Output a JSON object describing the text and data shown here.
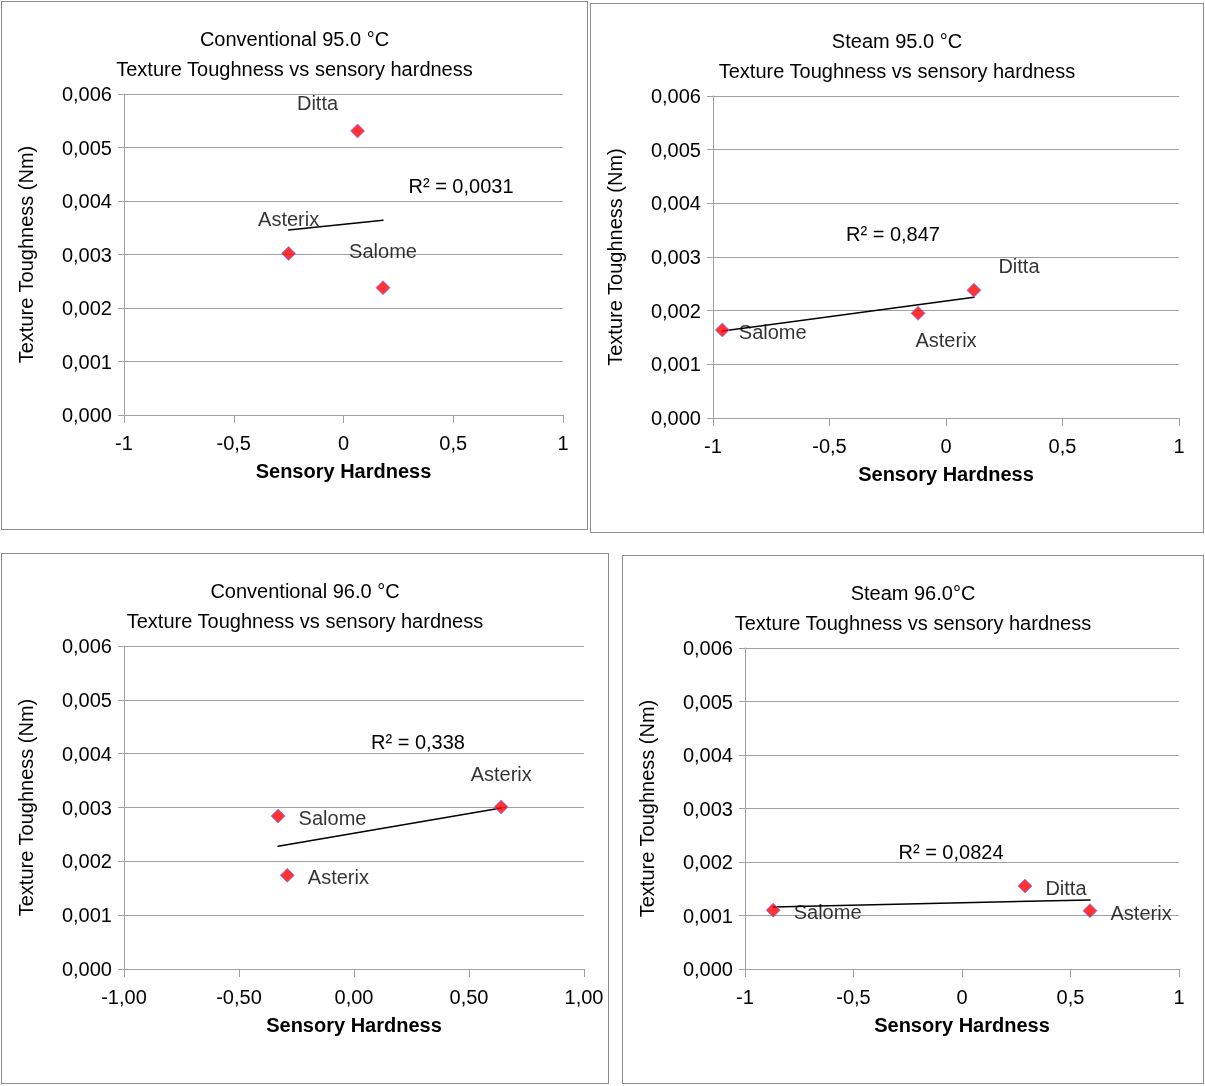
{
  "chart_data": [
    {
      "type": "scatter",
      "title": "Conventional 95.0 °C",
      "subtitle": "Texture Toughness vs sensory hardness",
      "xlabel": "Sensory Hardness",
      "ylabel": "Texture Toughness (Nm)",
      "marker": "diamond",
      "grid": "y",
      "xlim": [
        -1,
        1
      ],
      "xticks": [
        {
          "value": -1,
          "label": "-1"
        },
        {
          "value": -0.5,
          "label": "-0,5"
        },
        {
          "value": 0,
          "label": "0"
        },
        {
          "value": 0.5,
          "label": "0,5"
        },
        {
          "value": 1,
          "label": "1"
        }
      ],
      "ylim": [
        0,
        0.006
      ],
      "yticks": [
        {
          "value": 0,
          "label": "0,000"
        },
        {
          "value": 0.001,
          "label": "0,001"
        },
        {
          "value": 0.002,
          "label": "0,002"
        },
        {
          "value": 0.003,
          "label": "0,003"
        },
        {
          "value": 0.004,
          "label": "0,004"
        },
        {
          "value": 0.005,
          "label": "0,005"
        },
        {
          "value": 0.006,
          "label": "0,006"
        }
      ],
      "annotations": [
        "R² = 0,0031"
      ],
      "series": [
        {
          "color": "#ff0000",
          "x": [
            0.064,
            -0.25,
            0.18
          ],
          "values": [
            0.00531,
            0.00302,
            0.00238
          ],
          "value_labels": [
            "Ditta",
            "Asterix",
            "Salome"
          ]
        },
        {
          "type": "line",
          "color": "#000000",
          "marker": "none",
          "x": [
            -0.25,
            0.18
          ],
          "values": [
            0.00346,
            0.00364
          ]
        }
      ]
    },
    {
      "type": "scatter",
      "title": "Steam 95.0 °C",
      "subtitle": "Texture Toughness vs sensory hardness",
      "xlabel": "Sensory Hardness",
      "ylabel": "Texture Toughness (Nm)",
      "marker": "diamond",
      "grid": "y",
      "xlim": [
        -1,
        1
      ],
      "xticks": [
        {
          "value": -1,
          "label": "-1"
        },
        {
          "value": -0.5,
          "label": "-0,5"
        },
        {
          "value": 0,
          "label": "0"
        },
        {
          "value": 0.5,
          "label": "0,5"
        },
        {
          "value": 1,
          "label": "1"
        }
      ],
      "ylim": [
        0,
        0.006
      ],
      "yticks": [
        {
          "value": 0,
          "label": "0,000"
        },
        {
          "value": 0.001,
          "label": "0,001"
        },
        {
          "value": 0.002,
          "label": "0,002"
        },
        {
          "value": 0.003,
          "label": "0,003"
        },
        {
          "value": 0.004,
          "label": "0,004"
        },
        {
          "value": 0.005,
          "label": "0,005"
        },
        {
          "value": 0.006,
          "label": "0,006"
        }
      ],
      "annotations": [
        "R² = 0,847"
      ],
      "series": [
        {
          "color": "#ff0000",
          "x": [
            -0.96,
            -0.12,
            0.12
          ],
          "values": [
            0.00164,
            0.00195,
            0.00238
          ],
          "value_labels": [
            "Salome",
            "Asterix",
            "Ditta"
          ]
        },
        {
          "type": "line",
          "color": "#000000",
          "marker": "none",
          "x": [
            -0.96,
            0.12
          ],
          "values": [
            0.00162,
            0.00225
          ]
        }
      ]
    },
    {
      "type": "scatter",
      "title": "Conventional 96.0 °C",
      "subtitle": "Texture Toughness vs sensory hardness",
      "xlabel": "Sensory Hardness",
      "ylabel": "Texture Toughness (Nm)",
      "marker": "diamond",
      "grid": "y",
      "xlim": [
        -1,
        1
      ],
      "xticks": [
        {
          "value": -1,
          "label": "-1,00"
        },
        {
          "value": -0.5,
          "label": "-0,50"
        },
        {
          "value": 0,
          "label": "0,00"
        },
        {
          "value": 0.5,
          "label": "0,50"
        },
        {
          "value": 1,
          "label": "1,00"
        }
      ],
      "ylim": [
        0,
        0.006
      ],
      "yticks": [
        {
          "value": 0,
          "label": "0,000"
        },
        {
          "value": 0.001,
          "label": "0,001"
        },
        {
          "value": 0.002,
          "label": "0,002"
        },
        {
          "value": 0.003,
          "label": "0,003"
        },
        {
          "value": 0.004,
          "label": "0,004"
        },
        {
          "value": 0.005,
          "label": "0,005"
        },
        {
          "value": 0.006,
          "label": "0,006"
        }
      ],
      "annotations": [
        "R² = 0,338"
      ],
      "series": [
        {
          "color": "#ff0000",
          "x": [
            -0.33,
            -0.29,
            0.64
          ],
          "values": [
            0.00284,
            0.00174,
            0.00301
          ],
          "value_labels": [
            "Salome",
            "Asterix",
            "Asterix"
          ]
        },
        {
          "type": "line",
          "color": "#000000",
          "marker": "none",
          "x": [
            -0.33,
            0.64
          ],
          "values": [
            0.00228,
            0.00299
          ]
        }
      ]
    },
    {
      "type": "scatter",
      "title": "Steam 96.0°C",
      "subtitle": "Texture Toughness vs sensory hardness",
      "xlabel": "Sensory Hardness",
      "ylabel": "Texture Toughness (Nm)",
      "marker": "diamond",
      "grid": "y",
      "xlim": [
        -1,
        1
      ],
      "xticks": [
        {
          "value": -1,
          "label": "-1"
        },
        {
          "value": -0.5,
          "label": "-0,5"
        },
        {
          "value": 0,
          "label": "0"
        },
        {
          "value": 0.5,
          "label": "0,5"
        },
        {
          "value": 1,
          "label": "1"
        }
      ],
      "ylim": [
        0,
        0.006
      ],
      "yticks": [
        {
          "value": 0,
          "label": "0,000"
        },
        {
          "value": 0.001,
          "label": "0,001"
        },
        {
          "value": 0.002,
          "label": "0,002"
        },
        {
          "value": 0.003,
          "label": "0,003"
        },
        {
          "value": 0.004,
          "label": "0,004"
        },
        {
          "value": 0.005,
          "label": "0,005"
        },
        {
          "value": 0.006,
          "label": "0,006"
        }
      ],
      "annotations": [
        "R² = 0,0824"
      ],
      "series": [
        {
          "color": "#ff0000",
          "x": [
            -0.87,
            0.29,
            0.59
          ],
          "values": [
            0.0011,
            0.00155,
            0.00109
          ],
          "value_labels": [
            "Salome",
            "Ditta",
            "Asterix"
          ]
        },
        {
          "type": "line",
          "color": "#000000",
          "marker": "none",
          "x": [
            -0.87,
            0.59
          ],
          "values": [
            0.00116,
            0.00129
          ]
        }
      ]
    }
  ]
}
